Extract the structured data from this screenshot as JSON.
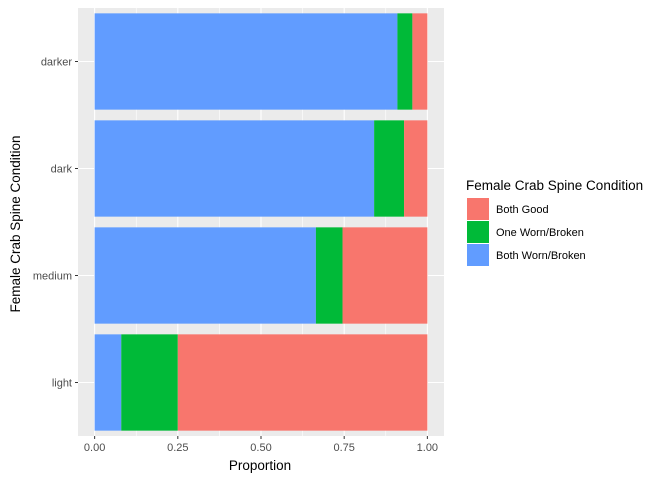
{
  "chart_data": {
    "type": "bar",
    "orientation": "horizontal",
    "stacked": true,
    "categories": [
      "light",
      "medium",
      "dark",
      "darker"
    ],
    "series": [
      {
        "name": "Both Worn/Broken",
        "color": "#619CFF",
        "values": [
          0.08,
          0.665,
          0.84,
          0.91
        ]
      },
      {
        "name": "One Worn/Broken",
        "color": "#00BA38",
        "values": [
          0.17,
          0.08,
          0.09,
          0.045
        ]
      },
      {
        "name": "Both Good",
        "color": "#F8766D",
        "values": [
          0.75,
          0.255,
          0.07,
          0.045
        ]
      }
    ],
    "xlabel": "Proportion",
    "ylabel": "Female Crab Spine Condition",
    "xlim": [
      -0.05,
      1.05
    ],
    "xticks": [
      "0.00",
      "0.25",
      "0.50",
      "0.75",
      "1.00"
    ],
    "xtick_values": [
      0,
      0.25,
      0.5,
      0.75,
      1.0
    ],
    "grid": true,
    "legend": {
      "title": "Female Crab Spine Condition",
      "position": "right",
      "entries": [
        {
          "label": "Both Good",
          "color": "#F8766D"
        },
        {
          "label": "One Worn/Broken",
          "color": "#00BA38"
        },
        {
          "label": "Both Worn/Broken",
          "color": "#619CFF"
        }
      ]
    },
    "panel_background": "#EBEBEB",
    "grid_color": "#FFFFFF"
  }
}
